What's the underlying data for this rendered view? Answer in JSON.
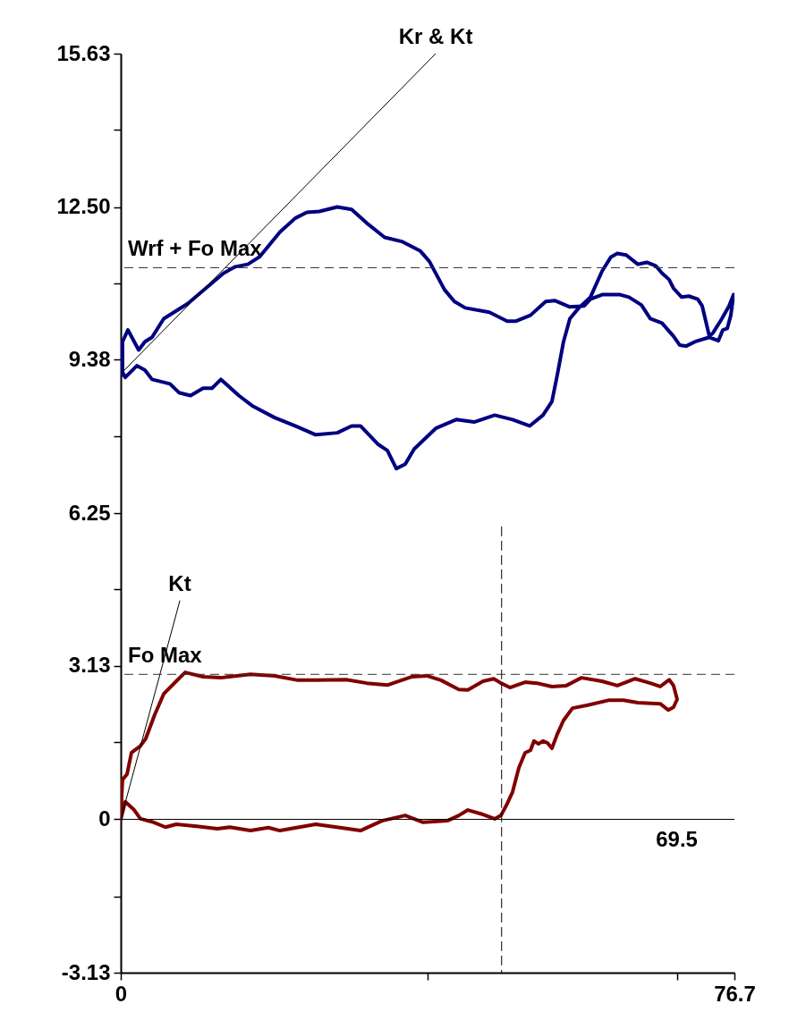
{
  "chart_data": {
    "type": "line",
    "xlim": [
      0,
      76.7
    ],
    "xticks": [
      0,
      {
        "value": 38.35,
        "label": null
      },
      {
        "value": 69.5,
        "label": null
      },
      76.7
    ],
    "ylim": [
      -3.13,
      15.63
    ],
    "yticks": [
      15.63,
      {
        "value": 14.07,
        "label": null
      },
      {
        "value": 12.5,
        "label": "12.50"
      },
      {
        "value": 10.94,
        "label": null
      },
      9.38,
      {
        "value": 7.82,
        "label": null
      },
      6.25,
      {
        "value": 4.69,
        "label": null
      },
      3.13,
      {
        "value": 1.57,
        "label": null
      },
      0,
      {
        "value": -1.57,
        "label": null
      },
      -3.13
    ],
    "grid": false,
    "series": [
      {
        "color": "#000080",
        "x": [
          0.22,
          0.22,
          0.89,
          2.24,
          3.02,
          3.91,
          5.37,
          8.39,
          10.62,
          12.86,
          14.31,
          15.88,
          17.33,
          19.9,
          21.8,
          23.26,
          24.82,
          27.06,
          28.85,
          30.75,
          32.98,
          35.22,
          37.45,
          38.57,
          40.47,
          41.7,
          43.05,
          46.06,
          48.3,
          49.42,
          51.21,
          53.11,
          54.23,
          56.13,
          57.92,
          58.7,
          60.16,
          62.39,
          63.51,
          65.07,
          66.18,
          67.64,
          69.09,
          69.87,
          70.66,
          71.78,
          73.57,
          74.69,
          75.25,
          75.8,
          76.25,
          76.59,
          76.03,
          75.13,
          74.02,
          73.57,
          72.67,
          72.11,
          71.0,
          70.1,
          69.09,
          68.53,
          67.64,
          66.86,
          65.74,
          64.63,
          63.17,
          62.06,
          61.27,
          60.16,
          58.7,
          57.25,
          56.13,
          55.34,
          54.56,
          53.89,
          52.77,
          51.1,
          48.97,
          46.74,
          44.16,
          41.93,
          39.36,
          36.67,
          35.55,
          34.44,
          33.32,
          32.2,
          29.96,
          28.85,
          27.06,
          24.37,
          21.8,
          19.23,
          16.55,
          14.76,
          12.52,
          11.4,
          10.29,
          8.72,
          7.27,
          6.15,
          3.91,
          3.02,
          2.01,
          0.56,
          0.22
        ],
        "values": [
          9.07,
          9.75,
          9.99,
          9.58,
          9.75,
          9.84,
          10.22,
          10.53,
          10.84,
          11.15,
          11.28,
          11.33,
          11.48,
          11.99,
          12.27,
          12.39,
          12.41,
          12.5,
          12.45,
          12.17,
          11.88,
          11.79,
          11.6,
          11.39,
          10.81,
          10.57,
          10.44,
          10.35,
          10.17,
          10.17,
          10.29,
          10.57,
          10.59,
          10.46,
          10.48,
          10.62,
          10.71,
          10.71,
          10.66,
          10.5,
          10.22,
          10.13,
          9.86,
          9.68,
          9.66,
          9.75,
          9.84,
          9.77,
          9.99,
          10.02,
          10.29,
          10.71,
          10.48,
          10.22,
          9.93,
          9.86,
          10.48,
          10.62,
          10.68,
          10.66,
          10.84,
          11.02,
          11.15,
          11.3,
          11.37,
          11.33,
          11.52,
          11.55,
          11.48,
          11.19,
          10.66,
          10.44,
          10.22,
          9.75,
          9.07,
          8.53,
          8.25,
          8.03,
          8.16,
          8.25,
          8.11,
          8.16,
          7.98,
          7.56,
          7.25,
          7.16,
          7.53,
          7.65,
          8.03,
          8.03,
          7.89,
          7.85,
          8.03,
          8.2,
          8.43,
          8.65,
          8.98,
          8.8,
          8.8,
          8.65,
          8.71,
          8.89,
          8.98,
          9.17,
          9.26,
          9.02,
          9.13
        ]
      },
      {
        "color": "#800000",
        "x": [
          0,
          0.56,
          1.68,
          2.46,
          3.91,
          5.59,
          6.93,
          9.5,
          12.08,
          13.64,
          16.21,
          18.45,
          19.9,
          24.37,
          27.39,
          29.96,
          32.65,
          35.55,
          37.79,
          40.81,
          42.26,
          43.38,
          45.28,
          46.74,
          47.52,
          48.3,
          48.97,
          49.75,
          50.54,
          51.21,
          51.65,
          52.21,
          52.77,
          53.33,
          53.89,
          54.56,
          55.34,
          56.46,
          58.36,
          60.94,
          62.84,
          64.63,
          67.42,
          68.43,
          69.09,
          69.54,
          69.09,
          68.54,
          67.42,
          66.19,
          64.29,
          62.06,
          60.15,
          57.58,
          55.68,
          53.89,
          51.99,
          50.54,
          48.64,
          47.52,
          46.62,
          45.28,
          43.38,
          42.26,
          40.03,
          38.24,
          36.34,
          33.32,
          30.75,
          28.18,
          24.37,
          22.14,
          19.23,
          16.21,
          12.52,
          10.29,
          8.05,
          6.93,
          5.37,
          4.25,
          3.13,
          2.46,
          1.34,
          0.78,
          0.22,
          0
        ],
        "values": [
          0,
          0.36,
          0.19,
          0.01,
          -0.05,
          -0.16,
          -0.1,
          -0.14,
          -0.19,
          -0.16,
          -0.23,
          -0.17,
          -0.23,
          -0.1,
          -0.17,
          -0.23,
          -0.03,
          0.08,
          -0.06,
          -0.03,
          0.08,
          0.19,
          0.1,
          0.01,
          0.08,
          0.32,
          0.56,
          1.05,
          1.36,
          1.41,
          1.6,
          1.54,
          1.6,
          1.56,
          1.45,
          1.74,
          2.02,
          2.27,
          2.33,
          2.43,
          2.43,
          2.38,
          2.36,
          2.23,
          2.29,
          2.45,
          2.73,
          2.85,
          2.71,
          2.78,
          2.87,
          2.73,
          2.82,
          2.89,
          2.73,
          2.71,
          2.78,
          2.8,
          2.69,
          2.78,
          2.87,
          2.82,
          2.64,
          2.65,
          2.84,
          2.93,
          2.91,
          2.74,
          2.78,
          2.85,
          2.84,
          2.84,
          2.93,
          2.96,
          2.89,
          2.91,
          3.0,
          2.82,
          2.56,
          2.14,
          1.65,
          1.5,
          1.36,
          0.92,
          0.81,
          0.1
        ]
      },
      {
        "name": "Kr & Kt",
        "color": "#000000",
        "x": [
          0.22,
          39.36
        ],
        "values": [
          9.13,
          15.63
        ]
      },
      {
        "name": "Kt",
        "color": "#000000",
        "x": [
          0,
          7.38
        ],
        "values": [
          0,
          4.46
        ]
      },
      {
        "color": "#000000",
        "line_style": "dashed",
        "x": [
          47.6,
          47.6
        ],
        "values": [
          5.97,
          -3.13
        ]
      }
    ],
    "ref_lines": [
      {
        "axis": "y",
        "value": 11.26,
        "label": "Wrf + Fo Max",
        "line_style": "dashed",
        "color": "#333333"
      },
      {
        "axis": "y",
        "value": 2.96,
        "label": "Fo Max",
        "line_style": "dashed",
        "color": "#333333"
      },
      {
        "axis": "y",
        "value": 0,
        "color": "#000000"
      }
    ],
    "annotations": [
      {
        "text": "69.5",
        "x": 69.5,
        "y": 0
      }
    ]
  }
}
